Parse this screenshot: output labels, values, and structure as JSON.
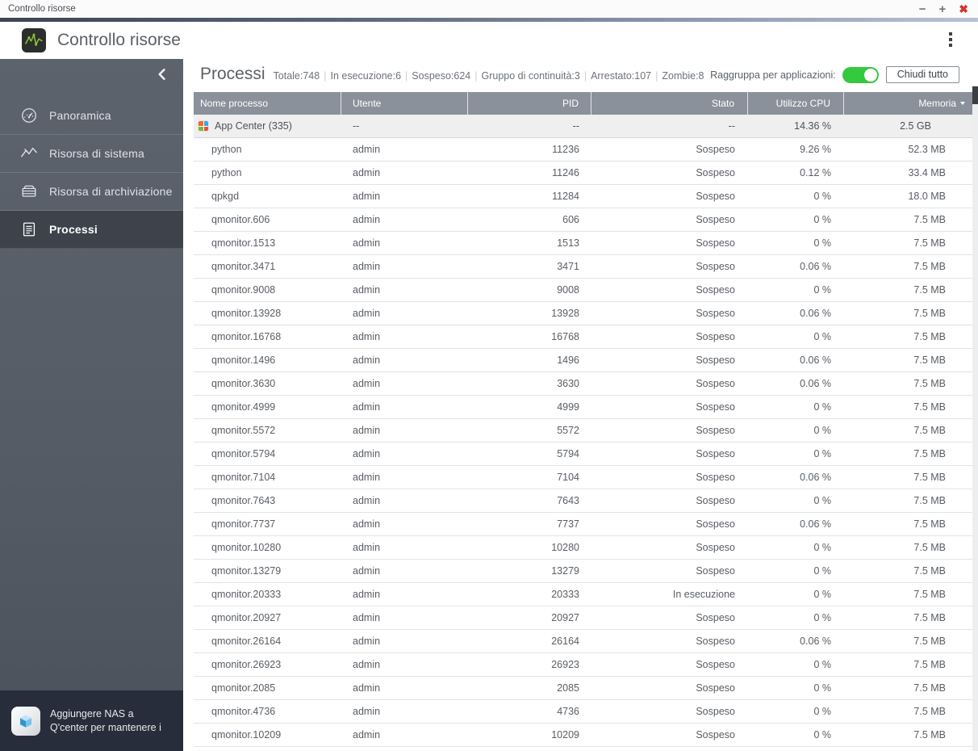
{
  "window": {
    "title": "Controllo risorse"
  },
  "app_header": {
    "title": "Controllo risorse"
  },
  "sidebar": {
    "items": [
      {
        "label": "Panoramica",
        "icon": "gauge-icon",
        "active": false
      },
      {
        "label": "Risorsa di sistema",
        "icon": "line-chart-icon",
        "active": false
      },
      {
        "label": "Risorsa di archiviazione",
        "icon": "storage-drive-icon",
        "active": false
      },
      {
        "label": "Processi",
        "icon": "process-list-icon",
        "active": true
      }
    ],
    "qcenter_promo": {
      "line1": "Aggiungere NAS a",
      "line2": "Q'center per mantenere i"
    }
  },
  "toolbar": {
    "title": "Processi",
    "stats": [
      "Totale:748",
      "In esecuzione:6",
      "Sospeso:624",
      "Gruppo di continuità:3",
      "Arrestato:107",
      "Zombie:8"
    ],
    "group_by_label": "Raggruppa per applicazioni:",
    "group_by_on": true,
    "close_all_label": "Chiudi tutto"
  },
  "table": {
    "columns": [
      "Nome processo",
      "Utente",
      "PID",
      "Stato",
      "Utilizzo CPU",
      "Memoria"
    ],
    "sort": {
      "column": "Memoria",
      "direction": "desc"
    },
    "group_row": {
      "name": "App Center (335)",
      "user": "--",
      "pid": "--",
      "state": "--",
      "cpu": "14.36 %",
      "memory": "2.5 GB",
      "expanded": true
    },
    "rows": [
      {
        "name": "python",
        "user": "admin",
        "pid": "11236",
        "state": "Sospeso",
        "cpu": "9.26 %",
        "memory": "52.3 MB"
      },
      {
        "name": "python",
        "user": "admin",
        "pid": "11246",
        "state": "Sospeso",
        "cpu": "0.12 %",
        "memory": "33.4 MB"
      },
      {
        "name": "qpkgd",
        "user": "admin",
        "pid": "11284",
        "state": "Sospeso",
        "cpu": "0 %",
        "memory": "18.0 MB"
      },
      {
        "name": "qmonitor.606",
        "user": "admin",
        "pid": "606",
        "state": "Sospeso",
        "cpu": "0 %",
        "memory": "7.5 MB"
      },
      {
        "name": "qmonitor.1513",
        "user": "admin",
        "pid": "1513",
        "state": "Sospeso",
        "cpu": "0 %",
        "memory": "7.5 MB"
      },
      {
        "name": "qmonitor.3471",
        "user": "admin",
        "pid": "3471",
        "state": "Sospeso",
        "cpu": "0.06 %",
        "memory": "7.5 MB"
      },
      {
        "name": "qmonitor.9008",
        "user": "admin",
        "pid": "9008",
        "state": "Sospeso",
        "cpu": "0 %",
        "memory": "7.5 MB"
      },
      {
        "name": "qmonitor.13928",
        "user": "admin",
        "pid": "13928",
        "state": "Sospeso",
        "cpu": "0.06 %",
        "memory": "7.5 MB"
      },
      {
        "name": "qmonitor.16768",
        "user": "admin",
        "pid": "16768",
        "state": "Sospeso",
        "cpu": "0 %",
        "memory": "7.5 MB"
      },
      {
        "name": "qmonitor.1496",
        "user": "admin",
        "pid": "1496",
        "state": "Sospeso",
        "cpu": "0.06 %",
        "memory": "7.5 MB"
      },
      {
        "name": "qmonitor.3630",
        "user": "admin",
        "pid": "3630",
        "state": "Sospeso",
        "cpu": "0.06 %",
        "memory": "7.5 MB"
      },
      {
        "name": "qmonitor.4999",
        "user": "admin",
        "pid": "4999",
        "state": "Sospeso",
        "cpu": "0 %",
        "memory": "7.5 MB"
      },
      {
        "name": "qmonitor.5572",
        "user": "admin",
        "pid": "5572",
        "state": "Sospeso",
        "cpu": "0 %",
        "memory": "7.5 MB"
      },
      {
        "name": "qmonitor.5794",
        "user": "admin",
        "pid": "5794",
        "state": "Sospeso",
        "cpu": "0 %",
        "memory": "7.5 MB"
      },
      {
        "name": "qmonitor.7104",
        "user": "admin",
        "pid": "7104",
        "state": "Sospeso",
        "cpu": "0.06 %",
        "memory": "7.5 MB"
      },
      {
        "name": "qmonitor.7643",
        "user": "admin",
        "pid": "7643",
        "state": "Sospeso",
        "cpu": "0 %",
        "memory": "7.5 MB"
      },
      {
        "name": "qmonitor.7737",
        "user": "admin",
        "pid": "7737",
        "state": "Sospeso",
        "cpu": "0.06 %",
        "memory": "7.5 MB"
      },
      {
        "name": "qmonitor.10280",
        "user": "admin",
        "pid": "10280",
        "state": "Sospeso",
        "cpu": "0 %",
        "memory": "7.5 MB"
      },
      {
        "name": "qmonitor.13279",
        "user": "admin",
        "pid": "13279",
        "state": "Sospeso",
        "cpu": "0 %",
        "memory": "7.5 MB"
      },
      {
        "name": "qmonitor.20333",
        "user": "admin",
        "pid": "20333",
        "state": "In esecuzione",
        "cpu": "0 %",
        "memory": "7.5 MB"
      },
      {
        "name": "qmonitor.20927",
        "user": "admin",
        "pid": "20927",
        "state": "Sospeso",
        "cpu": "0 %",
        "memory": "7.5 MB"
      },
      {
        "name": "qmonitor.26164",
        "user": "admin",
        "pid": "26164",
        "state": "Sospeso",
        "cpu": "0.06 %",
        "memory": "7.5 MB"
      },
      {
        "name": "qmonitor.26923",
        "user": "admin",
        "pid": "26923",
        "state": "Sospeso",
        "cpu": "0 %",
        "memory": "7.5 MB"
      },
      {
        "name": "qmonitor.2085",
        "user": "admin",
        "pid": "2085",
        "state": "Sospeso",
        "cpu": "0 %",
        "memory": "7.5 MB"
      },
      {
        "name": "qmonitor.4736",
        "user": "admin",
        "pid": "4736",
        "state": "Sospeso",
        "cpu": "0 %",
        "memory": "7.5 MB"
      },
      {
        "name": "qmonitor.10209",
        "user": "admin",
        "pid": "10209",
        "state": "Sospeso",
        "cpu": "0 %",
        "memory": "7.5 MB"
      }
    ]
  },
  "colors": {
    "toggle_on_green": "#34c93e",
    "close_red": "#d5332b",
    "sidebar_bg": "#565c66",
    "sidebar_active_bg": "#3d424b",
    "table_header_bg": "#8b919b",
    "app_icon_green": "#8dc63f",
    "qcenter_panel_bg": "#272d3a"
  }
}
